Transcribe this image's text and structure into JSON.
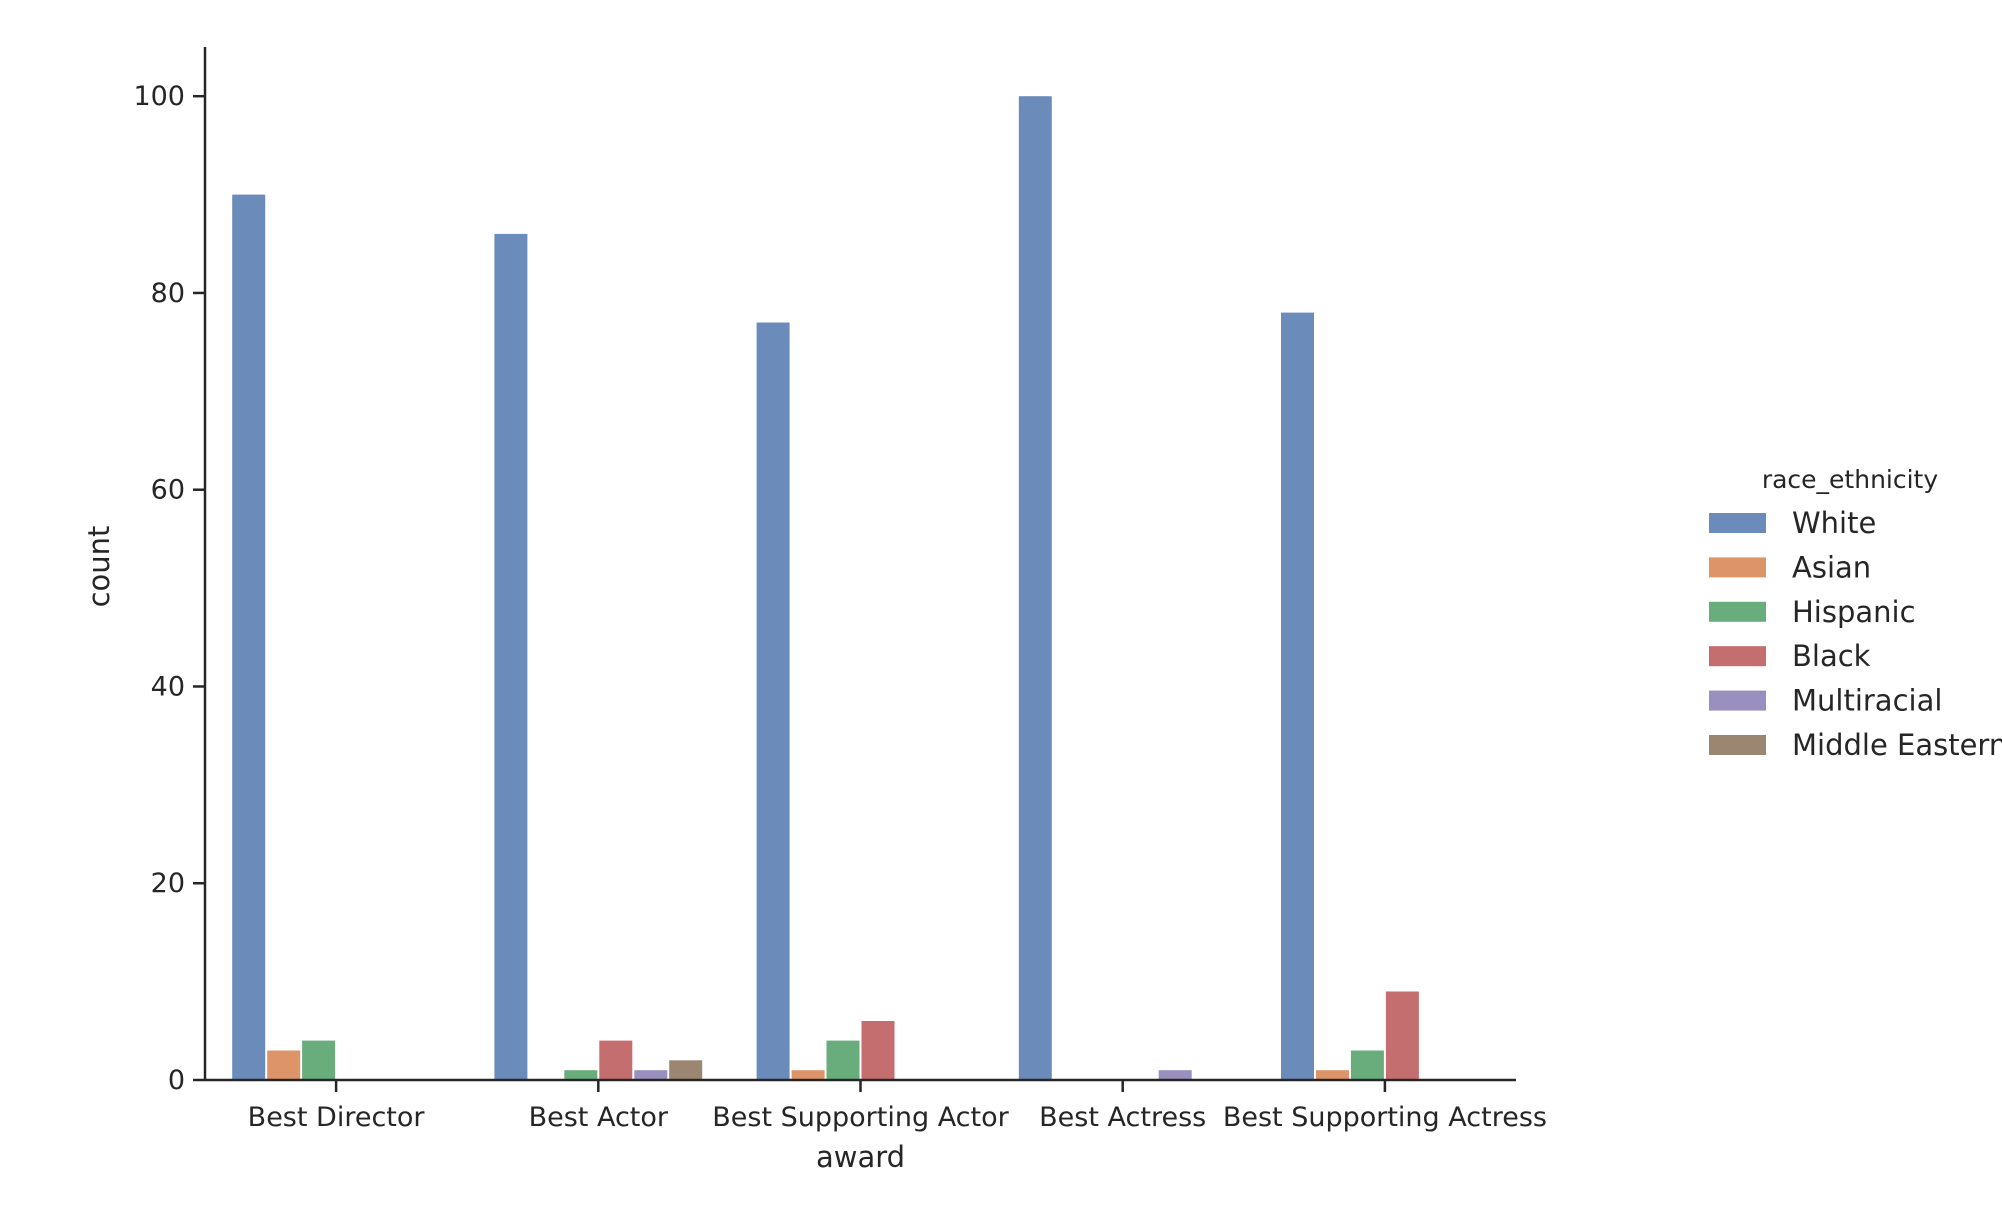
{
  "chart_data": {
    "type": "bar",
    "xlabel": "award",
    "ylabel": "count",
    "ylim": [
      0,
      105
    ],
    "yticks": [
      0,
      20,
      40,
      60,
      80,
      100
    ],
    "grid": false,
    "legend_position": "right",
    "categories": [
      "Best Director",
      "Best Actor",
      "Best Supporting Actor",
      "Best Actress",
      "Best Supporting Actress"
    ],
    "legend": {
      "title": "race_ethnicity"
    },
    "series": [
      {
        "name": "White",
        "color": "#6b8cba",
        "values": [
          90,
          86,
          77,
          100,
          78
        ]
      },
      {
        "name": "Asian",
        "color": "#de9469",
        "values": [
          3,
          0,
          1,
          0,
          1
        ]
      },
      {
        "name": "Hispanic",
        "color": "#69ad7d",
        "values": [
          4,
          1,
          4,
          0,
          3
        ]
      },
      {
        "name": "Black",
        "color": "#c56e70",
        "values": [
          0,
          4,
          6,
          0,
          9
        ]
      },
      {
        "name": "Multiracial",
        "color": "#9990bf",
        "values": [
          0,
          1,
          0,
          1,
          0
        ]
      },
      {
        "name": "Middle Eastern",
        "color": "#9b8671",
        "values": [
          0,
          2,
          0,
          0,
          0
        ]
      }
    ]
  }
}
